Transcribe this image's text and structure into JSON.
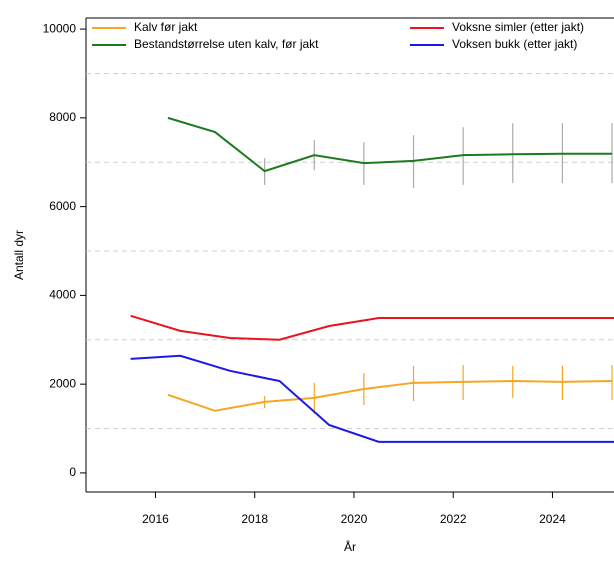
{
  "chart_data": {
    "type": "line",
    "x_label": "År",
    "y_label": "Antall dyr",
    "xlim": [
      2014.6,
      2025.24
    ],
    "xticks": [
      2016,
      2018,
      2020,
      2022,
      2024
    ],
    "ylim": [
      -430,
      10250
    ],
    "yticks": [
      0,
      2000,
      4000,
      6000,
      8000,
      10000
    ],
    "grid_lines": [
      1000,
      3000,
      5000,
      7000,
      9000
    ],
    "series": [
      {
        "name": "Kalv før jakt",
        "color": "#f5a623",
        "x": [
          2016.25,
          2017.2,
          2018.2,
          2019.2,
          2020.2,
          2021.2,
          2022.2,
          2023.2,
          2024.2,
          2025.2
        ],
        "values": [
          1760,
          1400,
          1600,
          1690,
          1890,
          2030,
          2050,
          2070,
          2050,
          2070
        ],
        "lower": [
          null,
          null,
          1460,
          1330,
          1530,
          1620,
          1640,
          1690,
          1640,
          1640
        ],
        "upper": [
          null,
          null,
          1730,
          2030,
          2250,
          2410,
          2430,
          2410,
          2410,
          2430
        ],
        "error_color": "#f5a623"
      },
      {
        "name": "Bestandstørrelse uten kalv, før jakt",
        "color": "#1e7a1e",
        "x": [
          2016.25,
          2017.2,
          2018.2,
          2019.2,
          2020.2,
          2021.2,
          2022.2,
          2023.2,
          2024.2,
          2025.2
        ],
        "values": [
          8000,
          7680,
          6800,
          7160,
          6980,
          7030,
          7160,
          7180,
          7190,
          7190
        ],
        "lower": [
          null,
          null,
          6490,
          6820,
          6490,
          6420,
          6490,
          6530,
          6530,
          6530
        ],
        "upper": [
          null,
          null,
          7090,
          7500,
          7450,
          7610,
          7790,
          7880,
          7880,
          7880
        ],
        "error_color": "#aaaaaa"
      },
      {
        "name": "Voksne simler (etter jakt)",
        "color": "#e8141e",
        "x": [
          2015.5,
          2016.5,
          2017.5,
          2018.5,
          2019.5,
          2020.5,
          2021.5,
          2022.5,
          2023.5,
          2024.5,
          2025.5
        ],
        "values": [
          3540,
          3200,
          3040,
          3000,
          3310,
          3490,
          3490,
          3490,
          3490,
          3490,
          3490
        ]
      },
      {
        "name": "Voksen bukk (etter jakt)",
        "color": "#1a1ae6",
        "x": [
          2015.5,
          2016.5,
          2017.5,
          2018.5,
          2019.5,
          2020.5,
          2021.5,
          2022.5,
          2023.5,
          2024.5,
          2025.5
        ],
        "values": [
          2570,
          2640,
          2300,
          2070,
          1080,
          700,
          700,
          700,
          700,
          700,
          700
        ]
      }
    ]
  }
}
